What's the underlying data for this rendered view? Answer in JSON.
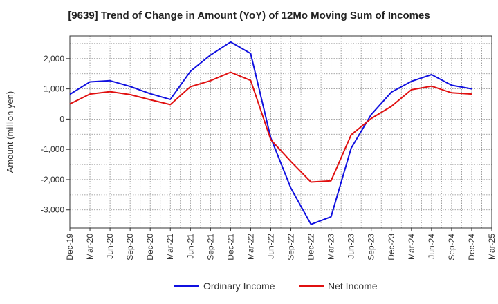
{
  "chart_data": {
    "type": "line",
    "title": "[9639]  Trend of Change in Amount (YoY) of 12Mo Moving Sum of Incomes",
    "ylabel": "Amount (million yen)",
    "xlabel": "",
    "ylim": [
      -3600,
      2750
    ],
    "yticks": [
      2000,
      1000,
      0,
      -1000,
      -2000,
      -3000
    ],
    "ytick_labels": [
      "2,000",
      "1,000",
      "0",
      "-1,000",
      "-2,000",
      "-3,000"
    ],
    "categories": [
      "Dec-19",
      "Mar-20",
      "Jun-20",
      "Sep-20",
      "Dec-20",
      "Mar-21",
      "Jun-21",
      "Sep-21",
      "Dec-21",
      "Mar-22",
      "Jun-22",
      "Sep-22",
      "Dec-22",
      "Mar-23",
      "Jun-23",
      "Sep-23",
      "Dec-23",
      "Mar-24",
      "Jun-24",
      "Sep-24",
      "Dec-24",
      "Mar-25"
    ],
    "grid": true,
    "legend_position": "bottom",
    "series": [
      {
        "name": "Ordinary Income",
        "color": "#1010e0",
        "values": [
          820,
          1230,
          1270,
          1080,
          840,
          650,
          1580,
          2120,
          2550,
          2170,
          -620,
          -2280,
          -3480,
          -3230,
          -960,
          150,
          890,
          1250,
          1470,
          1120,
          1000,
          null
        ]
      },
      {
        "name": "Net Income",
        "color": "#e01010",
        "values": [
          500,
          830,
          910,
          810,
          640,
          480,
          1070,
          1270,
          1550,
          1280,
          -680,
          -1400,
          -2080,
          -2040,
          -520,
          20,
          420,
          970,
          1090,
          870,
          830,
          null
        ]
      }
    ]
  }
}
